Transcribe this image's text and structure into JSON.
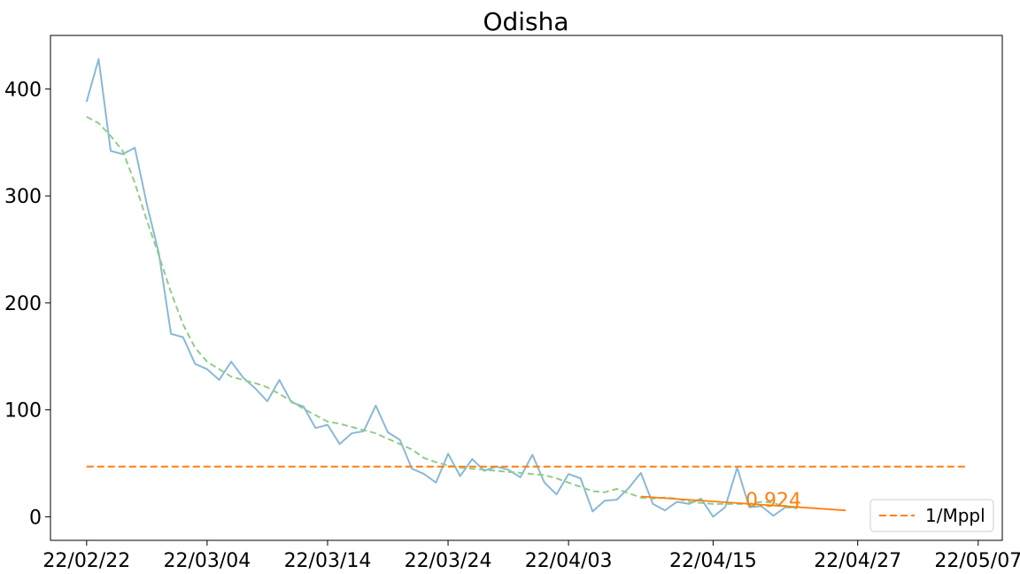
{
  "chart_data": {
    "type": "line",
    "title": "Odisha",
    "xlabel": "",
    "ylabel": "",
    "x_range": [
      "2022-02-19",
      "2022-05-09"
    ],
    "ylim": [
      -22,
      450
    ],
    "grid": false,
    "legend_position": "lower right",
    "x_tick_labels": [
      {
        "date": "2022-02-22",
        "label": "22/02/22"
      },
      {
        "date": "2022-03-04",
        "label": "22/03/04"
      },
      {
        "date": "2022-03-14",
        "label": "22/03/14"
      },
      {
        "date": "2022-03-24",
        "label": "22/03/24"
      },
      {
        "date": "2022-04-03",
        "label": "22/04/03"
      },
      {
        "date": "2022-04-15",
        "label": "22/04/15"
      },
      {
        "date": "2022-04-27",
        "label": "22/04/27"
      },
      {
        "date": "2022-05-07",
        "label": "22/05/07"
      }
    ],
    "y_ticks": [
      0,
      100,
      200,
      300,
      400
    ],
    "series": [
      {
        "role": "daily",
        "color": "#8ab9d6",
        "style": "solid",
        "start_date": "2022-02-22",
        "values": [
          388,
          428,
          342,
          339,
          345,
          292,
          246,
          171,
          168,
          143,
          138,
          128,
          145,
          130,
          120,
          108,
          128,
          107,
          103,
          83,
          86,
          68,
          78,
          80,
          104,
          79,
          72,
          45,
          40,
          32,
          59,
          38,
          54,
          43,
          47,
          44,
          37,
          58,
          32,
          21,
          40,
          36,
          5,
          15,
          16,
          27,
          41,
          12,
          6,
          14,
          12,
          17,
          0,
          9,
          46,
          9,
          10,
          1,
          9,
          9
        ]
      },
      {
        "role": "smoothed",
        "color": "#8fce8a",
        "style": "dashed",
        "start_date": "2022-02-22",
        "values": [
          374,
          368,
          356,
          342,
          312,
          277,
          244,
          210,
          180,
          158,
          145,
          138,
          131,
          128,
          125,
          121,
          115,
          108,
          101,
          95,
          89,
          87,
          84,
          81,
          78,
          73,
          68,
          63,
          55,
          51,
          48,
          46,
          45,
          44,
          43,
          42,
          41,
          40,
          39,
          36,
          32,
          28,
          24,
          23,
          26,
          22,
          18,
          17,
          18,
          17,
          14,
          13,
          12,
          12,
          12,
          12,
          14,
          13,
          9,
          8
        ]
      },
      {
        "name": "1/Mppl",
        "role": "threshold",
        "color": "#ff7f0e",
        "style": "dashed",
        "value": 47,
        "x_start": "2022-02-22",
        "x_end": "2022-05-06"
      },
      {
        "role": "trend",
        "color": "#ff7f0e",
        "style": "solid",
        "x_start": "2022-04-09",
        "x_end": "2022-04-26",
        "y_start": 19,
        "y_end": 6
      }
    ],
    "annotations": [
      {
        "text": "0.924",
        "color": "#ff7f0e",
        "x": "2022-04-20",
        "y": 16
      }
    ]
  }
}
